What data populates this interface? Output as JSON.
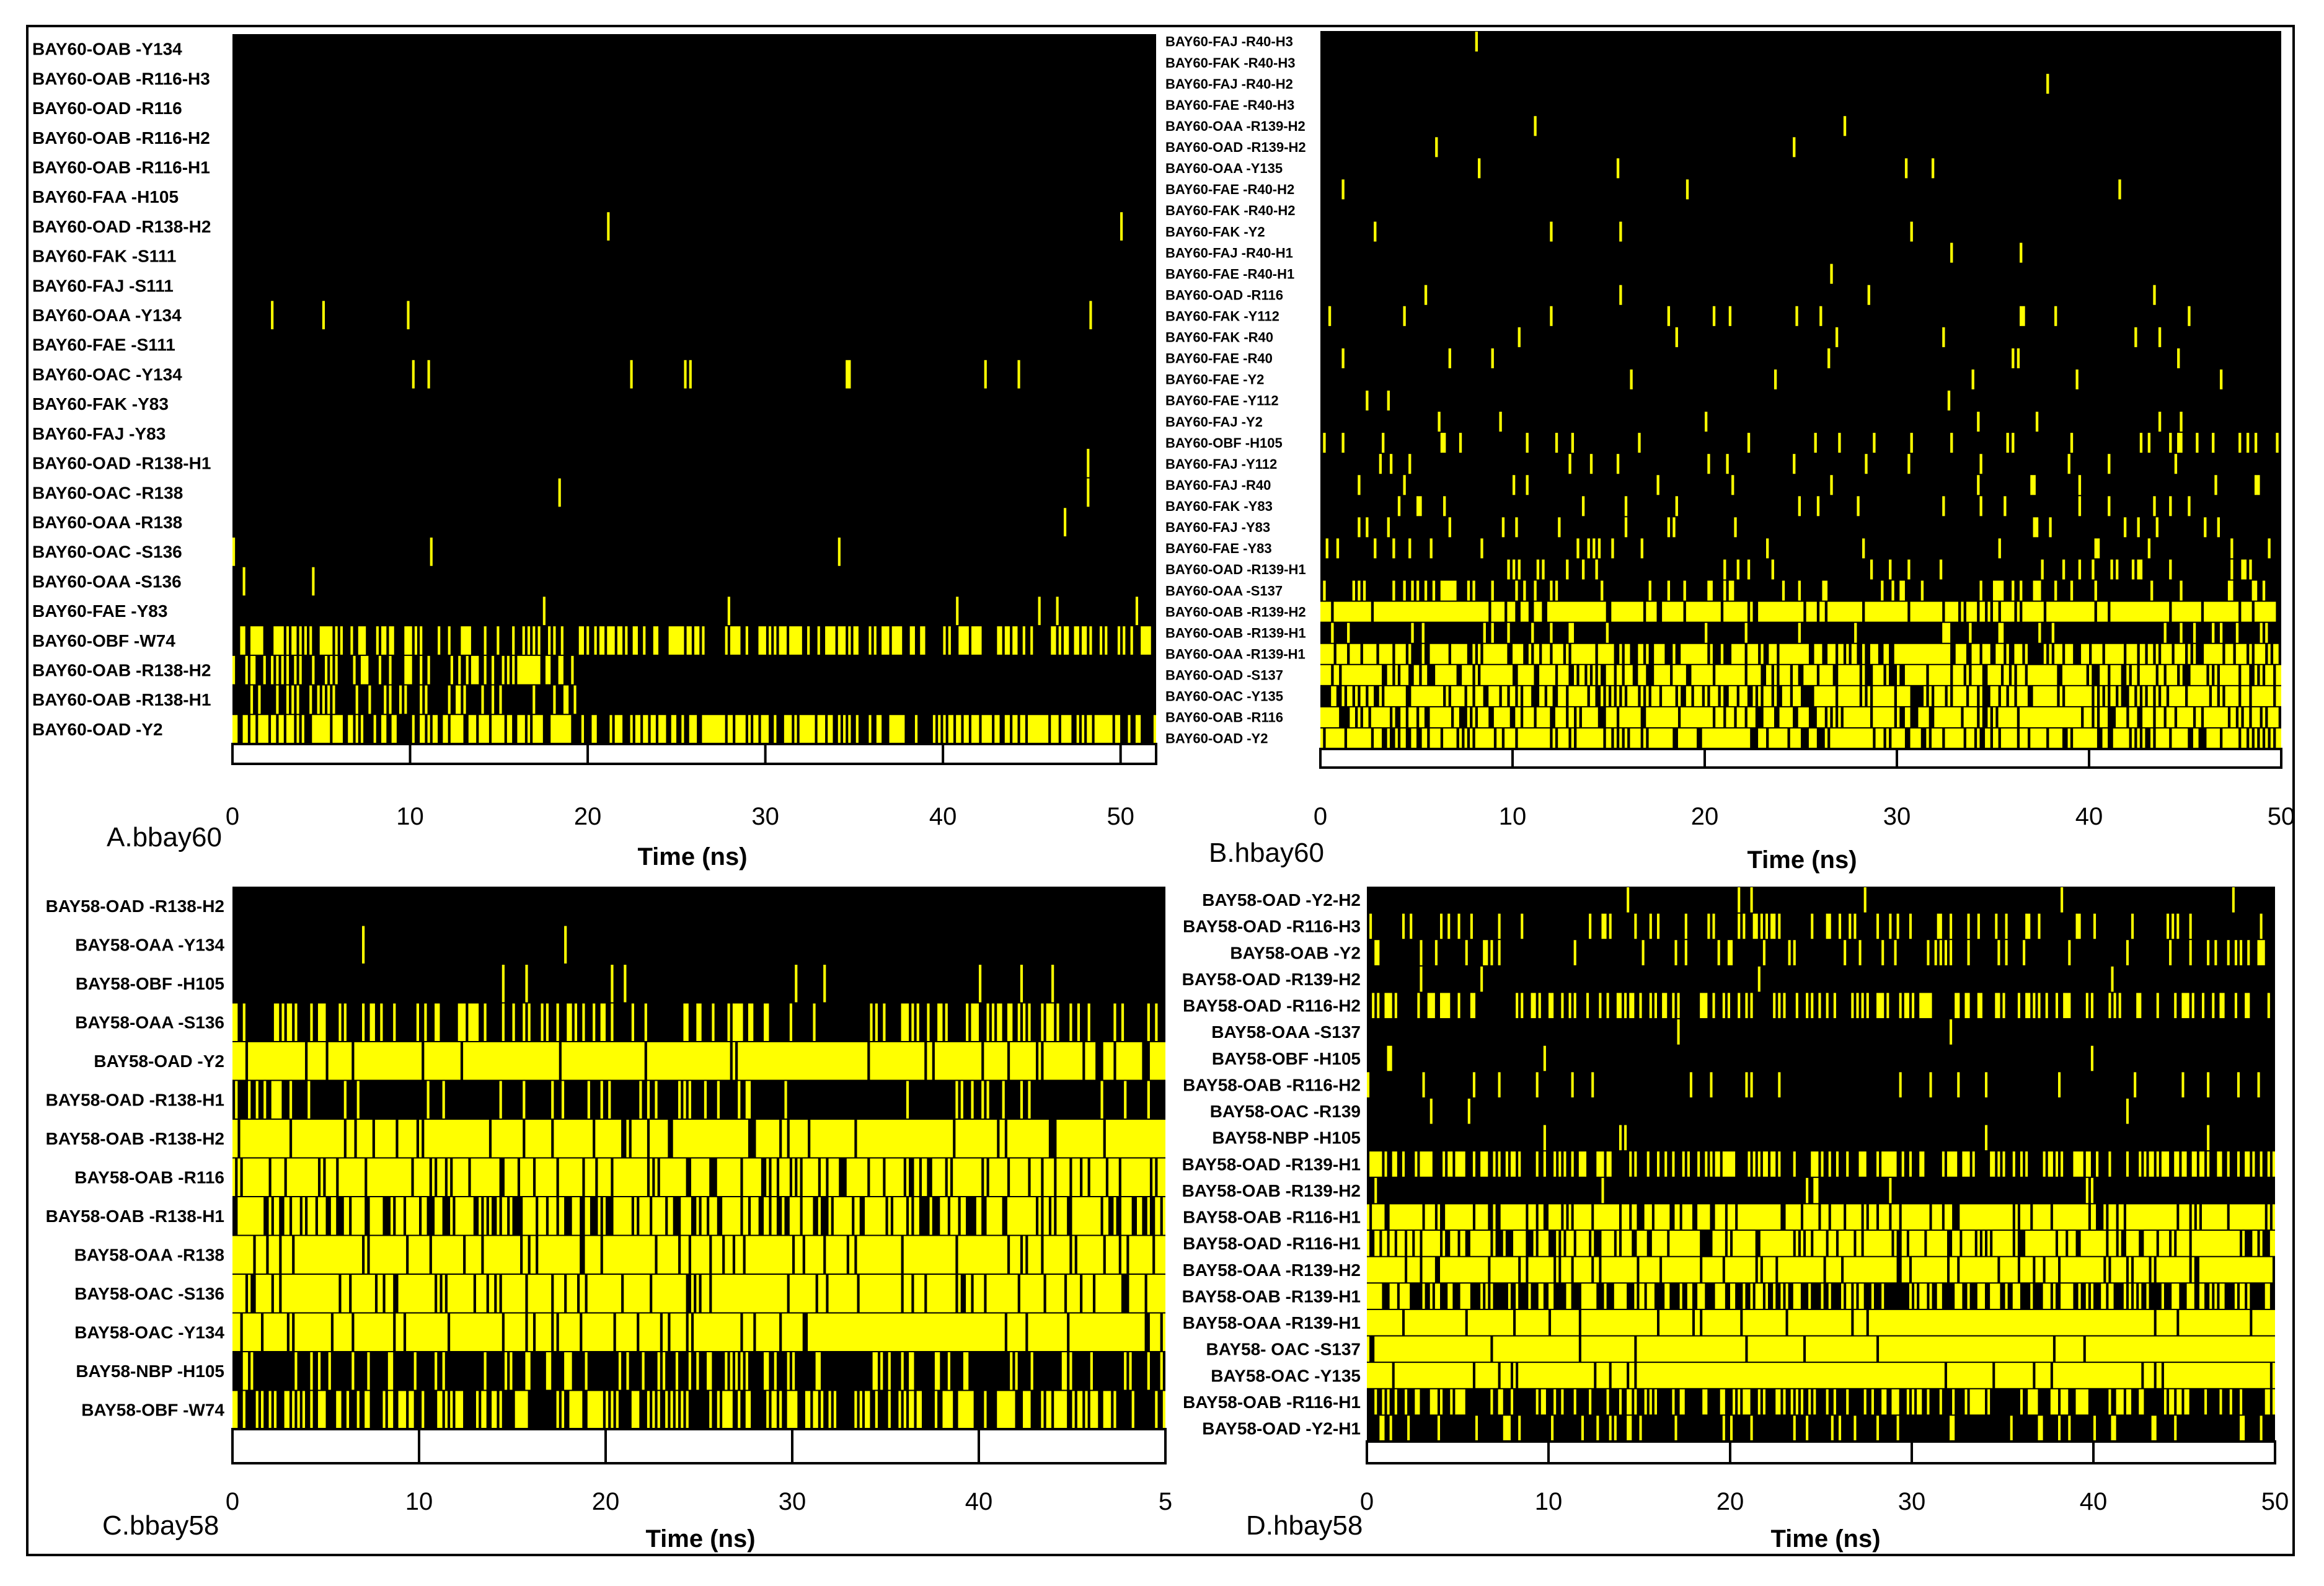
{
  "figure": {
    "colors": {
      "occupied": "#ffff00",
      "empty": "#000000",
      "text": "#000000"
    }
  },
  "chart_data": [
    {
      "type": "heatmap",
      "panel_label": "A.bbay60",
      "xlabel": "Time (ns)",
      "xlim": [
        0,
        52
      ],
      "xticks": [
        "0",
        "10",
        "20",
        "30",
        "40",
        "50"
      ],
      "rows": [
        "BAY60-OAB -Y134",
        "BAY60-OAB -R116-H3",
        "BAY60-OAD -R116",
        "BAY60-OAB -R116-H2",
        "BAY60-OAB -R116-H1",
        "BAY60-FAA -H105",
        "BAY60-OAD -R138-H2",
        "BAY60-FAK -S111",
        "BAY60-FAJ -S111",
        "BAY60-OAA -Y134",
        "BAY60-FAE -S111",
        "BAY60-OAC -Y134",
        "BAY60-FAK -Y83",
        "BAY60-FAJ -Y83",
        "BAY60-OAD -R138-H1",
        "BAY60-OAC -R138",
        "BAY60-OAA -R138",
        "BAY60-OAC -S136",
        "BAY60-OAA -S136",
        "BAY60-FAE -Y83",
        "BAY60-OBF -W74",
        "BAY60-OAB -R138-H2",
        "BAY60-OAB -R138-H1",
        "BAY60-OAD -Y2"
      ],
      "occupancy": [
        0.0,
        0.0,
        0.0,
        0.002,
        0.0,
        0.0,
        0.002,
        0.0,
        0.002,
        0.005,
        0.003,
        0.02,
        0.003,
        0.004,
        0.003,
        0.003,
        0.005,
        0.005,
        0.01,
        0.01,
        0.5,
        0.25,
        0.3,
        0.6
      ],
      "active_until": [
        52,
        52,
        52,
        52,
        52,
        52,
        52,
        52,
        52,
        52,
        52,
        52,
        52,
        52,
        52,
        52,
        52,
        52,
        52,
        52,
        52,
        19.5,
        19.5,
        52
      ]
    },
    {
      "type": "heatmap",
      "panel_label": "B.hbay60",
      "xlabel": "Time (ns)",
      "xlim": [
        0,
        50
      ],
      "xticks": [
        "0",
        "10",
        "20",
        "30",
        "40",
        "50"
      ],
      "rows": [
        "BAY60-FAJ -R40-H3",
        "BAY60-FAK -R40-H3",
        "BAY60-FAJ -R40-H2",
        "BAY60-FAE -R40-H3",
        "BAY60-OAA -R139-H2",
        "BAY60-OAD -R139-H2",
        "BAY60-OAA -Y135",
        "BAY60-FAE -R40-H2",
        "BAY60-FAK -R40-H2",
        "BAY60-FAK -Y2",
        "BAY60-FAJ -R40-H1",
        "BAY60-FAE -R40-H1",
        "BAY60-OAD -R116",
        "BAY60-FAK -Y112",
        "BAY60-FAK -R40",
        "BAY60-FAE -R40",
        "BAY60-FAE -Y2",
        "BAY60-FAE -Y112",
        "BAY60-FAJ -Y2",
        "BAY60-OBF -H105",
        "BAY60-FAJ -Y112",
        "BAY60-FAJ -R40",
        "BAY60-FAK -Y83",
        "BAY60-FAJ -Y83",
        "BAY60-FAE -Y83",
        "BAY60-OAD -R139-H1",
        "BAY60-OAA -S137",
        "BAY60-OAB -R139-H2",
        "BAY60-OAB -R139-H1",
        "BAY60-OAA -R139-H1",
        "BAY60-OAD -S137",
        "BAY60-OAC -Y135",
        "BAY60-OAB -R116",
        "BAY60-OAD -Y2"
      ],
      "occupancy": [
        0.003,
        0.002,
        0.002,
        0.003,
        0.003,
        0.003,
        0.01,
        0.005,
        0.004,
        0.005,
        0.005,
        0.005,
        0.01,
        0.03,
        0.02,
        0.02,
        0.02,
        0.03,
        0.02,
        0.08,
        0.04,
        0.04,
        0.05,
        0.05,
        0.06,
        0.08,
        0.15,
        0.85,
        0.1,
        0.65,
        0.7,
        0.7,
        0.75,
        0.72
      ],
      "active_until": [
        50,
        50,
        50,
        50,
        50,
        50,
        50,
        50,
        50,
        50,
        50,
        50,
        50,
        50,
        50,
        50,
        50,
        50,
        50,
        50,
        50,
        50,
        50,
        50,
        50,
        50,
        50,
        50,
        50,
        50,
        50,
        50,
        50,
        50
      ]
    },
    {
      "type": "heatmap",
      "panel_label": "C.bbay58",
      "xlabel": "Time (ns)",
      "xlim": [
        0,
        50
      ],
      "xticks": [
        "0",
        "10",
        "20",
        "30",
        "40",
        "5"
      ],
      "rows": [
        "BAY58-OAD -R138-H2",
        "BAY58-OAA -Y134",
        "BAY58-OBF -H105",
        "BAY58-OAA -S136",
        "BAY58-OAD -Y2",
        "BAY58-OAD -R138-H1",
        "BAY58-OAB -R138-H2",
        "BAY58-OAB -R116",
        "BAY58-OAB -R138-H1",
        "BAY58-OAA -R138",
        "BAY58-OAC -S136",
        "BAY58-OAC -Y134",
        "BAY58-NBP -H105",
        "BAY58-OBF -W74"
      ],
      "occupancy": [
        0.0,
        0.01,
        0.02,
        0.3,
        0.95,
        0.15,
        0.92,
        0.85,
        0.6,
        0.9,
        0.88,
        0.88,
        0.2,
        0.45
      ],
      "active_until": [
        50,
        50,
        50,
        50,
        50,
        50,
        50,
        50,
        50,
        50,
        50,
        50,
        50,
        50
      ]
    },
    {
      "type": "heatmap",
      "panel_label": "D.hbay58",
      "xlabel": "Time (ns)",
      "xlim": [
        0,
        50
      ],
      "xticks": [
        "0",
        "10",
        "20",
        "30",
        "40",
        "50"
      ],
      "rows": [
        "BAY58-OAD -Y2-H2",
        "BAY58-OAD -R116-H3",
        "BAY58-OAB -Y2",
        "BAY58-OAD -R139-H2",
        "BAY58-OAD -R116-H2",
        "BAY58-OAA -S137",
        "BAY58-OBF -H105",
        "BAY58-OAB -R116-H2",
        "BAY58-OAC -R139",
        "BAY58-NBP -H105",
        "BAY58-OAD -R139-H1",
        "BAY58-OAB -R139-H2",
        "BAY58-OAB -R116-H1",
        "BAY58-OAD -R116-H1",
        "BAY58-OAA -R139-H2",
        "BAY58-OAB -R139-H1",
        "BAY58-OAA -R139-H1",
        "BAY58- OAC -S137",
        "BAY58-OAC -Y135",
        "BAY58-OAB -R116-H1",
        "BAY58-OAD -Y2-H1"
      ],
      "occupancy": [
        0.02,
        0.15,
        0.15,
        0.02,
        0.3,
        0.01,
        0.01,
        0.05,
        0.01,
        0.01,
        0.4,
        0.02,
        0.85,
        0.7,
        0.9,
        0.35,
        0.95,
        0.98,
        0.95,
        0.35,
        0.15
      ],
      "active_until": [
        50,
        50,
        50,
        50,
        50,
        50,
        50,
        50,
        50,
        50,
        50,
        50,
        50,
        50,
        50,
        50,
        50,
        50,
        50,
        50,
        50
      ]
    }
  ]
}
